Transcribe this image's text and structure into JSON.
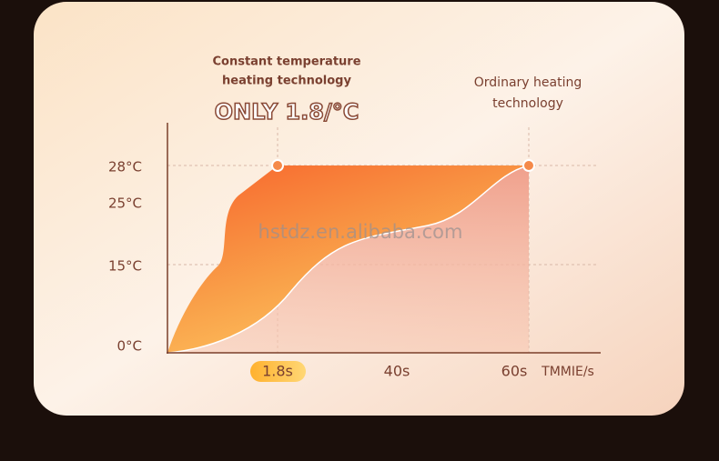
{
  "header": {
    "line1": "Constant temperature",
    "line2": "heating technology",
    "badge": "ONLY 1.8/°C"
  },
  "ordinary": {
    "line1": "Ordinary heating",
    "line2": "technology"
  },
  "y_labels": [
    "28°C",
    "25°C",
    "15°C",
    "0°C"
  ],
  "x_labels": [
    "1.8s",
    "40s",
    "60s"
  ],
  "x_unit": "TMMIE/s",
  "watermark": "hstdz.en.alibaba.com"
}
